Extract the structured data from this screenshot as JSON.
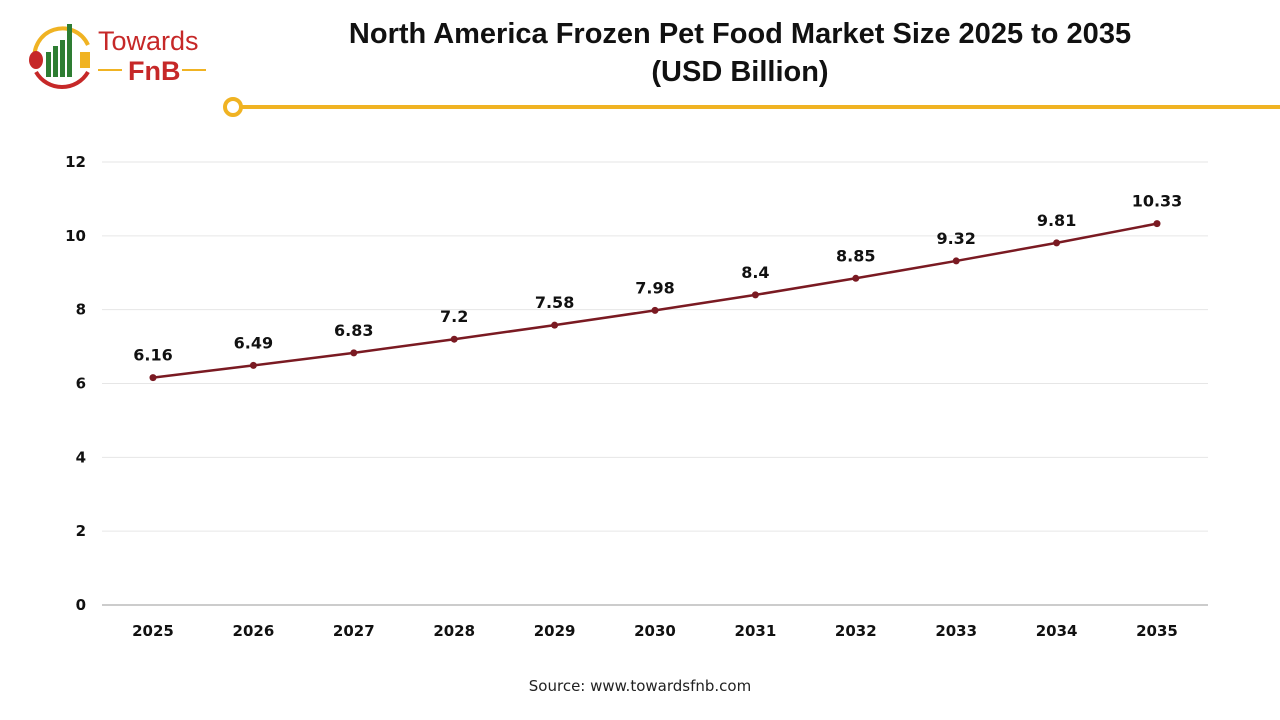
{
  "logo": {
    "line1": "Towards",
    "line2": "FnB"
  },
  "chart_data": {
    "type": "line",
    "title": "North America Frozen Pet Food Market Size 2025 to 2035",
    "subtitle": "(USD Billion)",
    "categories": [
      "2025",
      "2026",
      "2027",
      "2028",
      "2029",
      "2030",
      "2031",
      "2032",
      "2033",
      "2034",
      "2035"
    ],
    "values": [
      6.16,
      6.49,
      6.83,
      7.2,
      7.58,
      7.98,
      8.4,
      8.85,
      9.32,
      9.81,
      10.33
    ],
    "data_labels": [
      "6.16",
      "6.49",
      "6.83",
      "7.2",
      "7.58",
      "7.98",
      "8.4",
      "8.85",
      "9.32",
      "9.81",
      "10.33"
    ],
    "yticks": [
      "0",
      "2",
      "4",
      "6",
      "8",
      "10",
      "12"
    ],
    "ylim": [
      0,
      12
    ],
    "grid": true,
    "line_color": "#7a1a22",
    "accent_color": "#f0b323"
  },
  "source": "Source: www.towardsfnb.com"
}
